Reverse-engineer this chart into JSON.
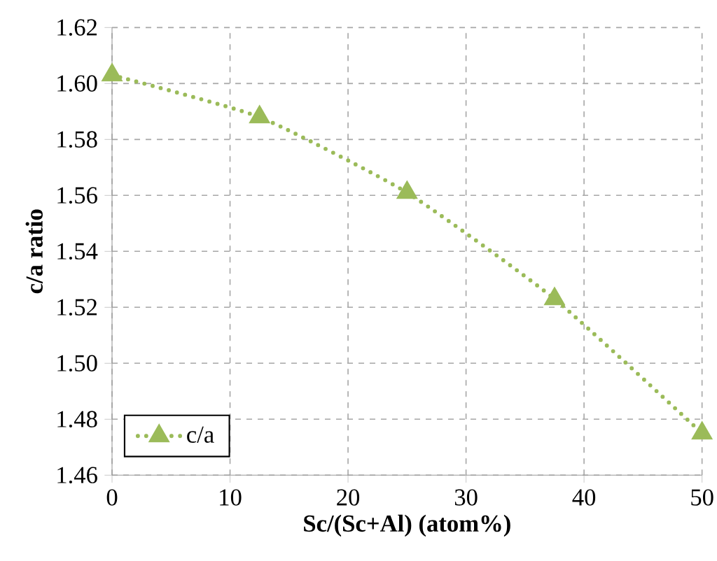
{
  "chart_data": {
    "type": "line",
    "xlabel": "Sc/(Sc+Al) (atom%)",
    "ylabel": "c/a ratio",
    "x": [
      0,
      12.5,
      25,
      37.5,
      50
    ],
    "series": [
      {
        "name": "c/a",
        "color": "#9bbb59",
        "values": [
          1.603,
          1.588,
          1.561,
          1.523,
          1.475
        ]
      }
    ],
    "xlim": [
      0,
      50
    ],
    "xticks": [
      0,
      10,
      20,
      30,
      40,
      50
    ],
    "ylim": [
      1.46,
      1.62
    ],
    "yticks": [
      1.46,
      1.48,
      {
        "value": 1.5,
        "label": "1.50"
      },
      1.52,
      1.54,
      1.56,
      1.58,
      {
        "value": 1.6,
        "label": "1.60"
      },
      1.62
    ],
    "grid": true,
    "legend": "bottom left",
    "marker": "triangle",
    "line_style": "dotted"
  }
}
